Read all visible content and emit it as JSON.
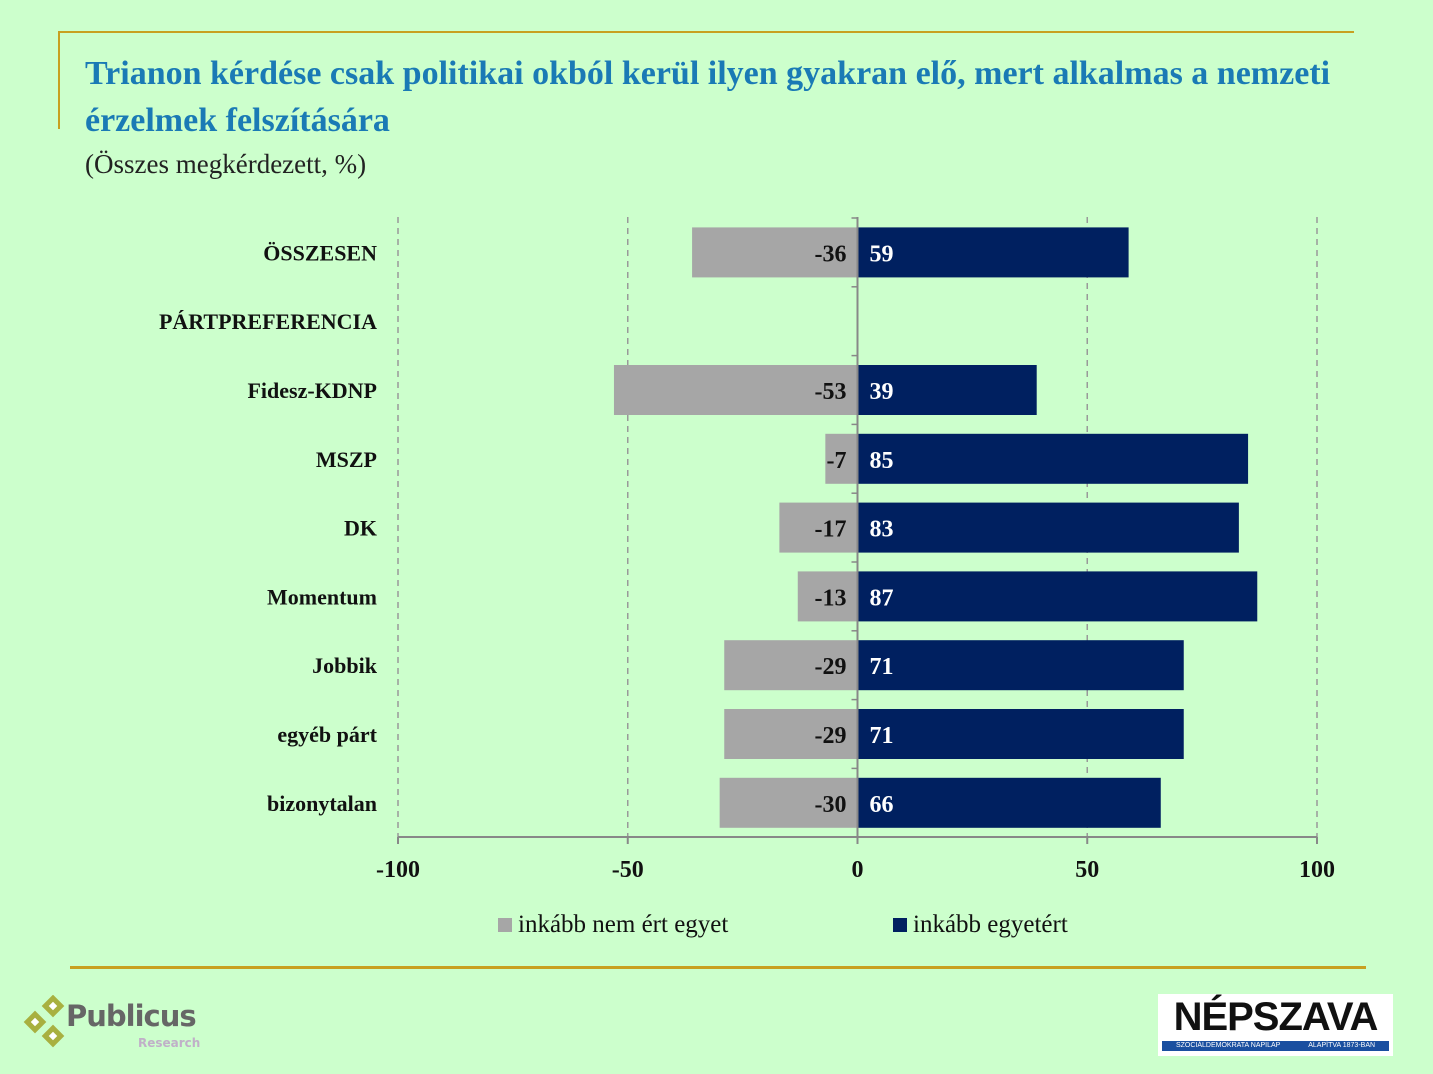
{
  "title": "Trianon kérdése csak politikai okból kerül ilyen gyakran elő, mert alkalmas a nemzeti érzelmek felszítására",
  "subtitle": "(Összes megkérdezett, %)",
  "chart_data": {
    "type": "bar",
    "orientation": "horizontal-diverging",
    "categories": [
      "ÖSSZESEN",
      "PÁRTPREFERENCIA",
      "Fidesz-KDNP",
      "MSZP",
      "DK",
      "Momentum",
      "Jobbik",
      "egyéb párt",
      "bizonytalan"
    ],
    "bold_categories": [
      "ÖSSZESEN",
      "PÁRTPREFERENCIA"
    ],
    "series": [
      {
        "name": "inkább nem ért egyet",
        "color": "#a6a6a6",
        "values": [
          -36,
          null,
          -53,
          -7,
          -17,
          -13,
          -29,
          -29,
          -30
        ]
      },
      {
        "name": "inkább egyetért",
        "color": "#002060",
        "values": [
          59,
          null,
          39,
          85,
          83,
          87,
          71,
          71,
          66
        ]
      }
    ],
    "xlim": [
      -100,
      100
    ],
    "xticks": [
      -100,
      -50,
      0,
      50,
      100
    ],
    "grid": "vertical dashed",
    "legend": "bottom"
  },
  "logos": {
    "publicus": {
      "name": "Publicus",
      "sub": "Research"
    },
    "nepszava": {
      "name": "NÉPSZAVA",
      "tagline_left": "SZOCIÁLDEMOKRATA NAPILAP",
      "tagline_right": "ALAPÍTVA 1873-BAN"
    }
  }
}
